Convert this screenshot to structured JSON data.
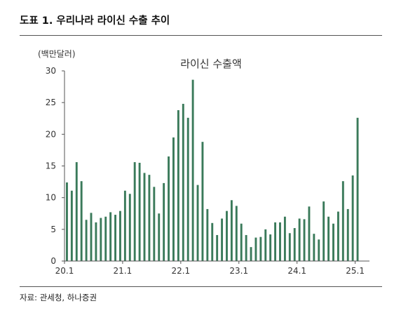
{
  "figure": {
    "title": "도표 1. 우리나라 라이신 수출 추이",
    "source": "자료: 관세청, 하나증권"
  },
  "chart_data": {
    "type": "bar",
    "title": "라이신 수출액",
    "unit_label": "(백만달러)",
    "xlabel": "",
    "ylabel": "",
    "ylim": [
      0,
      30
    ],
    "yticks": [
      0,
      5,
      10,
      15,
      20,
      25,
      30
    ],
    "xtick_labels": [
      "20.1",
      "21.1",
      "22.1",
      "23.1",
      "24.1",
      "25.1"
    ],
    "xtick_index": [
      0,
      12,
      24,
      36,
      48,
      60
    ],
    "grid": false,
    "bar_color": "#3a7a5a",
    "categories": [
      "20.1",
      "20.2",
      "20.3",
      "20.4",
      "20.5",
      "20.6",
      "20.7",
      "20.8",
      "20.9",
      "20.10",
      "20.11",
      "20.12",
      "21.1",
      "21.2",
      "21.3",
      "21.4",
      "21.5",
      "21.6",
      "21.7",
      "21.8",
      "21.9",
      "21.10",
      "21.11",
      "21.12",
      "22.1",
      "22.2",
      "22.3",
      "22.4",
      "22.5",
      "22.6",
      "22.7",
      "22.8",
      "22.9",
      "22.10",
      "22.11",
      "22.12",
      "23.1",
      "23.2",
      "23.3",
      "23.4",
      "23.5",
      "23.6",
      "23.7",
      "23.8",
      "23.9",
      "23.10",
      "23.11",
      "23.12",
      "24.1",
      "24.2",
      "24.3",
      "24.4",
      "24.5",
      "24.6",
      "24.7",
      "24.8",
      "24.9",
      "24.10",
      "24.11",
      "24.12",
      "25.1",
      "25.2"
    ],
    "values": [
      12.4,
      11.1,
      15.6,
      12.6,
      6.5,
      7.6,
      6.1,
      6.8,
      7.0,
      7.7,
      7.3,
      7.9,
      11.1,
      10.6,
      15.6,
      15.5,
      13.9,
      13.6,
      11.7,
      7.5,
      12.3,
      16.5,
      19.5,
      23.8,
      24.8,
      22.6,
      28.6,
      12.0,
      18.8,
      8.2,
      6.0,
      4.1,
      6.7,
      7.9,
      9.6,
      8.7,
      5.9,
      4.1,
      2.2,
      3.7,
      3.8,
      5.0,
      4.2,
      6.1,
      6.1,
      7.0,
      4.4,
      5.2,
      6.7,
      6.6,
      8.6,
      4.3,
      3.4,
      9.4,
      7.0,
      5.9,
      7.8,
      12.6,
      8.2,
      13.5,
      22.6,
      0
    ]
  }
}
